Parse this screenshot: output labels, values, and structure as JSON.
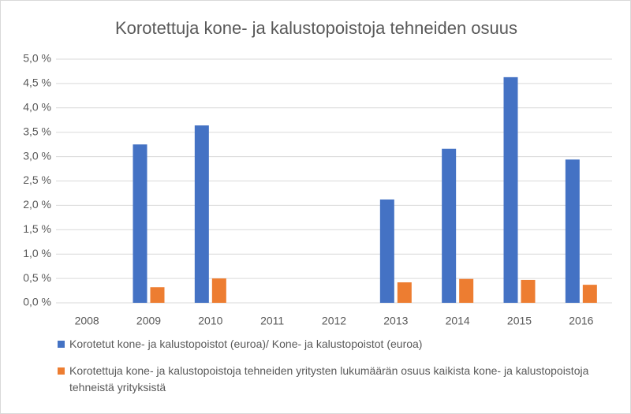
{
  "chart_data": {
    "type": "bar",
    "title": "Korotettuja kone- ja kalustopoistoja tehneiden osuus",
    "categories": [
      "2008",
      "2009",
      "2010",
      "2011",
      "2012",
      "2013",
      "2014",
      "2015",
      "2016"
    ],
    "series": [
      {
        "name": "Korotetut kone- ja kalustopoistot (euroa)/ Kone- ja kalustopoistot (euroa)",
        "color": "#4472c4",
        "values": [
          null,
          3.25,
          3.64,
          null,
          null,
          2.12,
          3.16,
          4.63,
          2.94
        ]
      },
      {
        "name": "Korotettuja kone- ja kalustopoistoja tehneiden yritysten lukumäärän osuus kaikista kone- ja kalustopoistoja tehneistä yrityksistä",
        "color": "#ed7d31",
        "values": [
          null,
          0.32,
          0.5,
          null,
          null,
          0.42,
          0.49,
          0.47,
          0.37
        ]
      }
    ],
    "ylim": [
      0,
      5
    ],
    "yticks": [
      {
        "value": 0,
        "label": "0,0 %"
      },
      {
        "value": 0.5,
        "label": "0,5 %"
      },
      {
        "value": 1,
        "label": "1,0 %"
      },
      {
        "value": 1.5,
        "label": "1,5 %"
      },
      {
        "value": 2,
        "label": "2,0 %"
      },
      {
        "value": 2.5,
        "label": "2,5 %"
      },
      {
        "value": 3,
        "label": "3,0 %"
      },
      {
        "value": 3.5,
        "label": "3,5 %"
      },
      {
        "value": 4,
        "label": "4,0 %"
      },
      {
        "value": 4.5,
        "label": "4,5 %"
      },
      {
        "value": 5,
        "label": "5,0 %"
      }
    ],
    "grid": true
  }
}
